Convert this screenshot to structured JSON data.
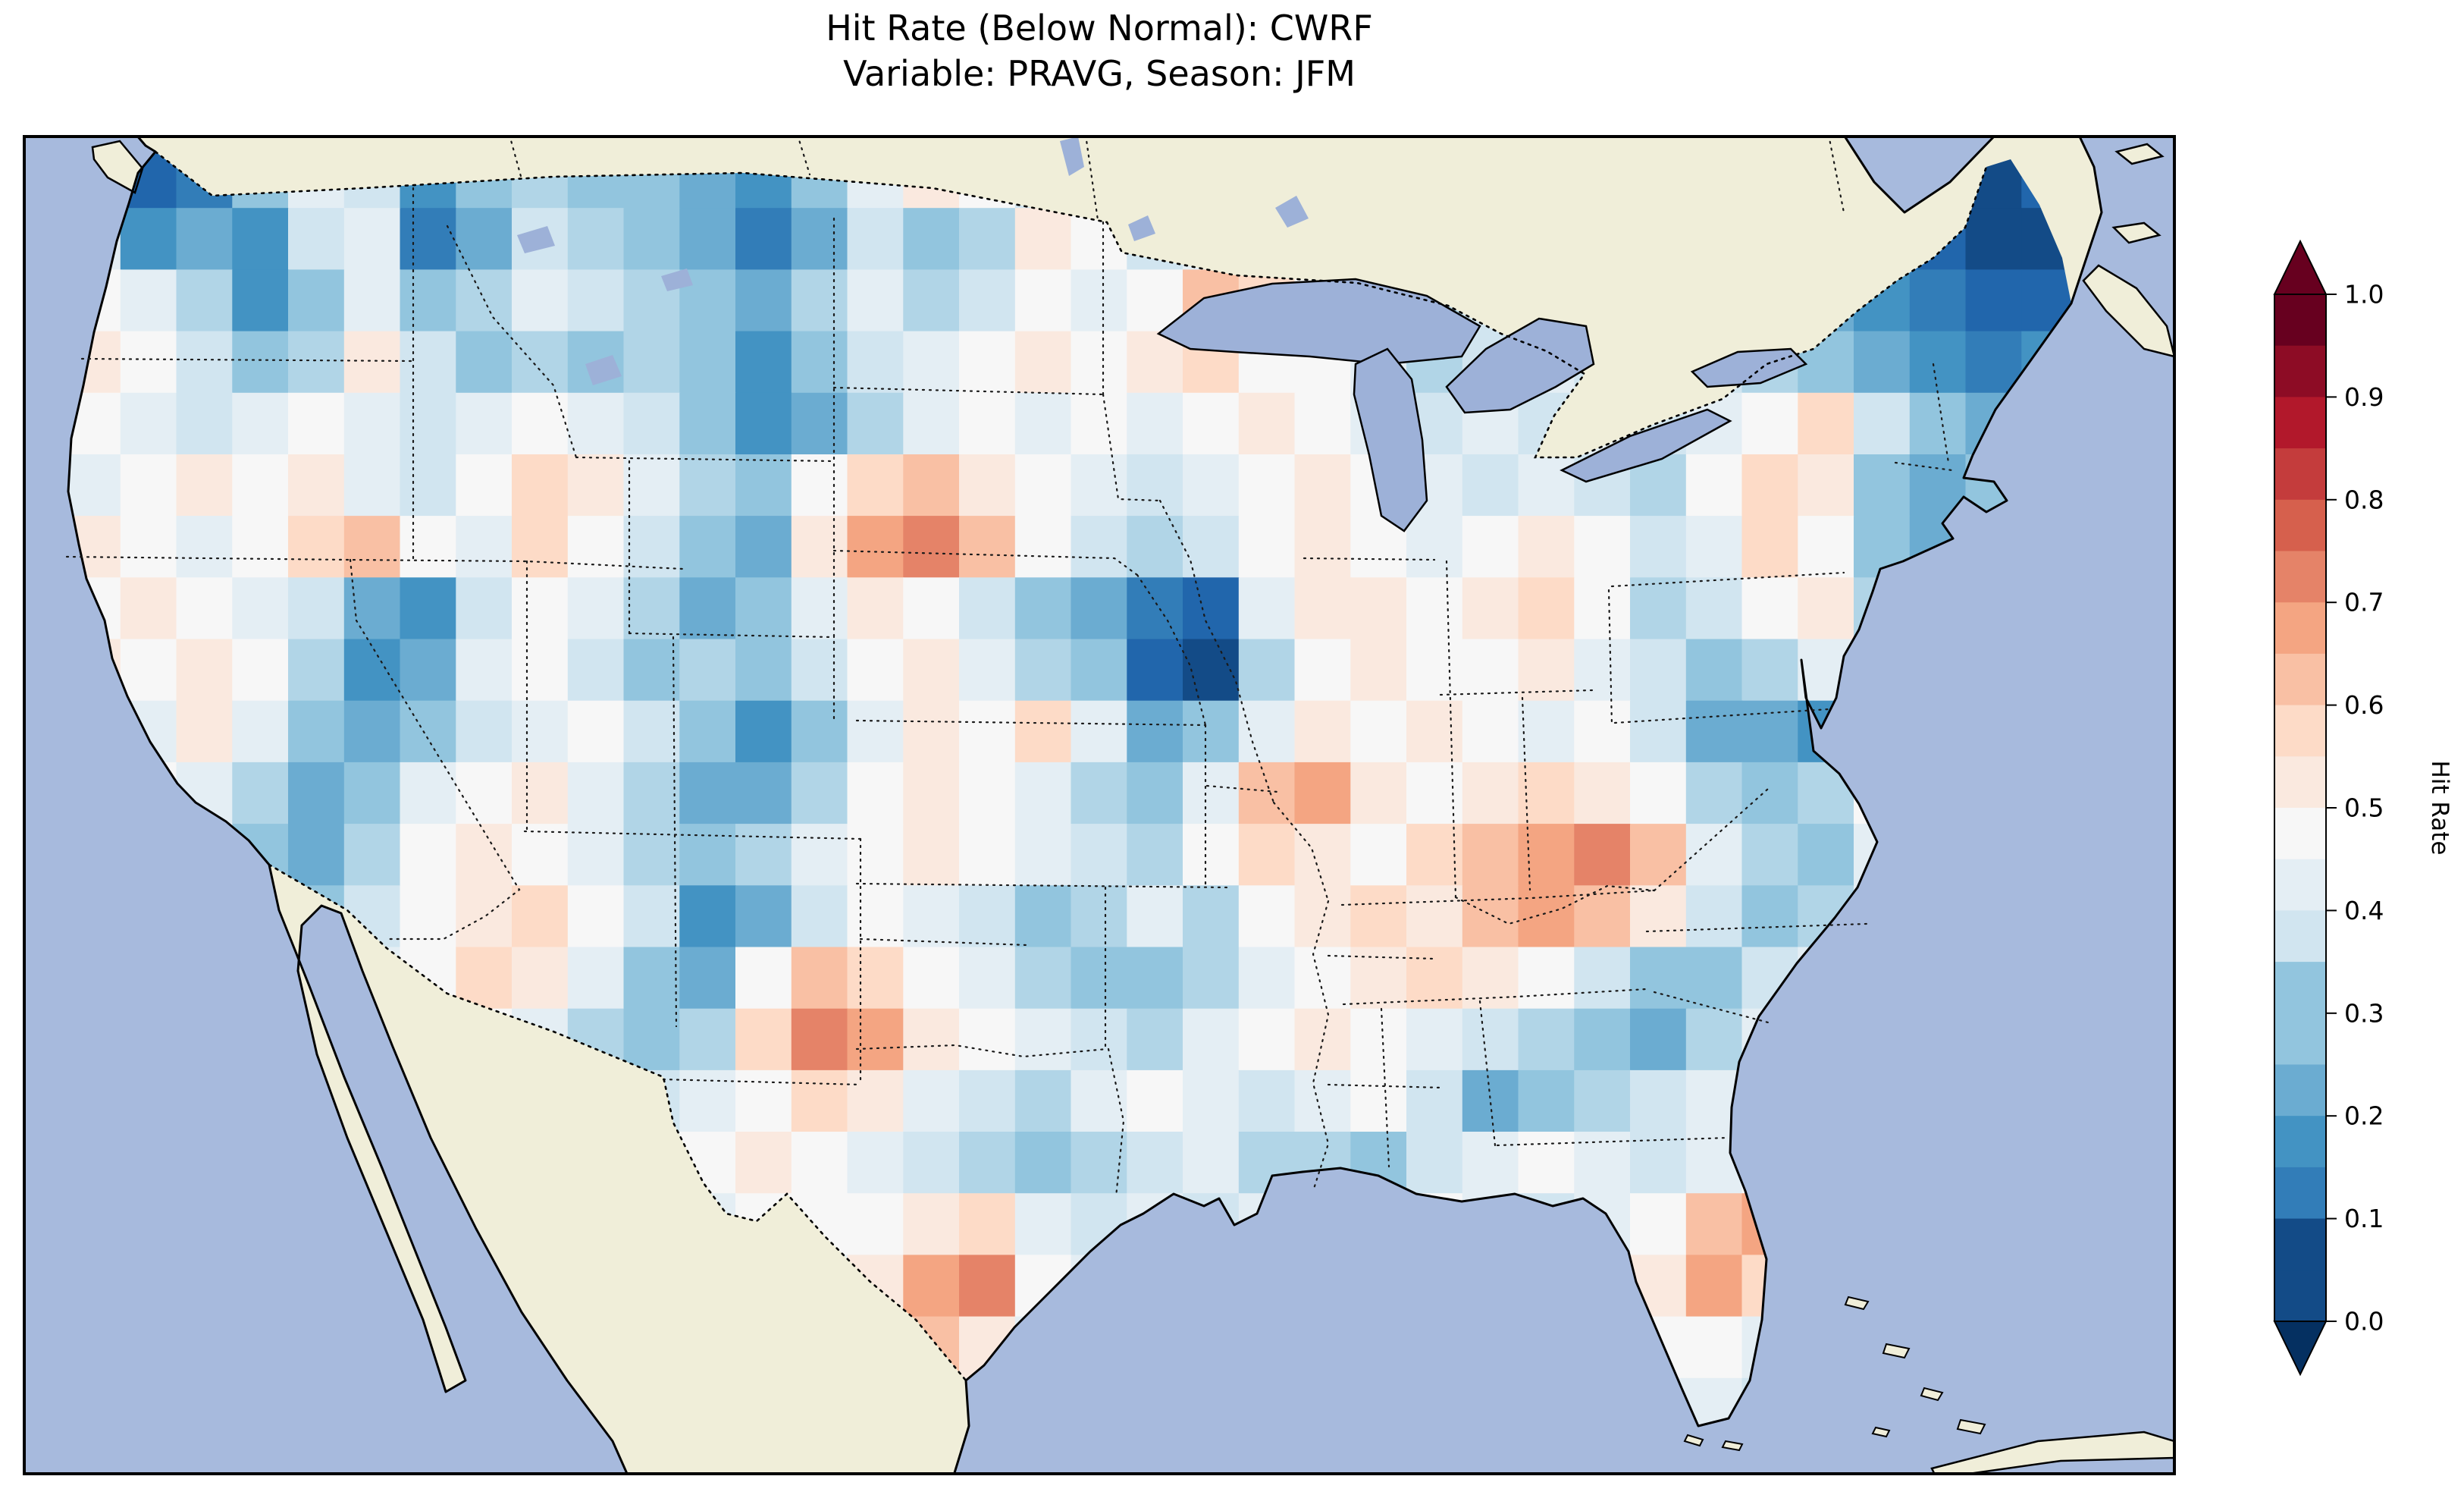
{
  "figure": {
    "title_line1": "Hit Rate (Below Normal): CWRF",
    "title_line2": "Variable: PRAVG, Season: JFM"
  },
  "colorbar": {
    "label": "Hit Rate",
    "ticks": [
      "1.0",
      "0.9",
      "0.8",
      "0.7",
      "0.6",
      "0.5",
      "0.4",
      "0.3",
      "0.2",
      "0.1",
      "0.0"
    ],
    "min": 0.0,
    "max": 1.0,
    "colormap": "RdBu_r",
    "stops": [
      [
        0.0,
        "#053061"
      ],
      [
        0.1,
        "#2166ac"
      ],
      [
        0.2,
        "#4393c3"
      ],
      [
        0.3,
        "#92c5de"
      ],
      [
        0.4,
        "#d1e5f0"
      ],
      [
        0.5,
        "#f7f7f7"
      ],
      [
        0.6,
        "#fddbc7"
      ],
      [
        0.7,
        "#f4a582"
      ],
      [
        0.8,
        "#d6604d"
      ],
      [
        0.9,
        "#b2182b"
      ],
      [
        1.0,
        "#67001f"
      ]
    ]
  },
  "map": {
    "ocean_color": "#a7badd",
    "land_color": "#f0eed9",
    "lake_color": "#9db1d8",
    "coast_color": "#000000",
    "border_color": "#1a1a1a"
  },
  "chart_data": {
    "type": "heatmap",
    "title": "Hit Rate (Below Normal): CWRF",
    "subtitle": "Variable: PRAVG, Season: JFM",
    "metric": "Hit Rate (Below Normal)",
    "model": "CWRF",
    "variable": "PRAVG",
    "season": "JFM",
    "region": "CONUS",
    "colorbar_label": "Hit Rate",
    "colormap": "RdBu_r",
    "value_range": [
      0.0,
      1.0
    ],
    "colorbar_ticks": [
      0.0,
      0.1,
      0.2,
      0.3,
      0.4,
      0.5,
      0.6,
      0.7,
      0.8,
      0.9,
      1.0
    ],
    "grid_rows": 21,
    "grid_cols": 36,
    "values": [
      [
        0.3,
        0.1,
        0.15,
        0.3,
        0.45,
        0.4,
        0.2,
        0.3,
        0.35,
        0.3,
        0.3,
        0.25,
        0.2,
        0.3,
        0.45,
        0.55,
        0.5,
        0.4,
        0.35,
        0.3,
        0.35,
        0.3,
        0.4,
        0.45,
        0.4,
        0.45,
        0.5,
        0.45,
        0.4,
        0.35,
        0.3,
        0.25,
        0.2,
        0.1,
        0.05,
        0.1
      ],
      [
        0.45,
        0.2,
        0.25,
        0.2,
        0.4,
        0.45,
        0.15,
        0.25,
        0.4,
        0.35,
        0.3,
        0.25,
        0.15,
        0.25,
        0.4,
        0.3,
        0.35,
        0.55,
        0.5,
        0.4,
        0.45,
        0.4,
        0.45,
        0.4,
        0.35,
        0.4,
        0.45,
        0.5,
        0.45,
        0.4,
        0.35,
        0.3,
        0.25,
        0.1,
        0.05,
        0.05
      ],
      [
        0.5,
        0.45,
        0.35,
        0.2,
        0.3,
        0.45,
        0.3,
        0.35,
        0.45,
        0.4,
        0.35,
        0.3,
        0.25,
        0.35,
        0.45,
        0.35,
        0.4,
        0.5,
        0.45,
        0.5,
        0.65,
        0.6,
        0.5,
        0.4,
        0.35,
        0.4,
        0.45,
        0.45,
        0.4,
        0.35,
        0.3,
        0.25,
        0.2,
        0.15,
        0.1,
        0.1
      ],
      [
        0.55,
        0.5,
        0.4,
        0.3,
        0.35,
        0.55,
        0.4,
        0.3,
        0.35,
        0.3,
        0.35,
        0.3,
        0.2,
        0.3,
        0.4,
        0.45,
        0.5,
        0.55,
        0.5,
        0.55,
        0.6,
        0.5,
        0.5,
        0.45,
        0.35,
        0.4,
        0.45,
        0.4,
        0.35,
        0.4,
        0.35,
        0.3,
        0.25,
        0.2,
        0.15,
        0.2
      ],
      [
        0.5,
        0.45,
        0.4,
        0.45,
        0.5,
        0.45,
        0.4,
        0.45,
        0.5,
        0.45,
        0.4,
        0.3,
        0.2,
        0.25,
        0.35,
        0.45,
        0.5,
        0.45,
        0.5,
        0.45,
        0.5,
        0.55,
        0.5,
        0.45,
        0.4,
        0.45,
        0.4,
        0.45,
        0.4,
        0.45,
        0.5,
        0.6,
        0.4,
        0.3,
        0.25,
        0.3
      ],
      [
        0.45,
        0.5,
        0.55,
        0.5,
        0.55,
        0.45,
        0.4,
        0.5,
        0.6,
        0.55,
        0.45,
        0.35,
        0.3,
        0.5,
        0.6,
        0.65,
        0.55,
        0.5,
        0.45,
        0.4,
        0.45,
        0.5,
        0.55,
        0.5,
        0.45,
        0.4,
        0.45,
        0.4,
        0.35,
        0.5,
        0.6,
        0.55,
        0.3,
        0.25,
        0.3,
        0.35
      ],
      [
        0.55,
        0.5,
        0.45,
        0.5,
        0.6,
        0.65,
        0.5,
        0.45,
        0.6,
        0.5,
        0.4,
        0.3,
        0.25,
        0.55,
        0.7,
        0.75,
        0.65,
        0.5,
        0.4,
        0.35,
        0.4,
        0.5,
        0.55,
        0.5,
        0.45,
        0.5,
        0.55,
        0.5,
        0.4,
        0.45,
        0.6,
        0.5,
        0.3,
        0.25,
        0.35,
        0.4
      ],
      [
        0.5,
        0.55,
        0.5,
        0.45,
        0.4,
        0.25,
        0.2,
        0.4,
        0.5,
        0.45,
        0.35,
        0.25,
        0.3,
        0.45,
        0.55,
        0.5,
        0.4,
        0.3,
        0.25,
        0.15,
        0.1,
        0.45,
        0.55,
        0.55,
        0.5,
        0.55,
        0.6,
        0.5,
        0.35,
        0.4,
        0.5,
        0.55,
        0.35,
        0.3,
        0.4,
        0.45
      ],
      [
        0.55,
        0.5,
        0.55,
        0.5,
        0.35,
        0.2,
        0.25,
        0.45,
        0.5,
        0.4,
        0.3,
        0.35,
        0.3,
        0.4,
        0.5,
        0.55,
        0.45,
        0.35,
        0.3,
        0.1,
        0.05,
        0.35,
        0.5,
        0.55,
        0.5,
        0.5,
        0.55,
        0.45,
        0.4,
        0.3,
        0.35,
        0.45,
        0.4,
        0.35,
        0.45,
        0.5
      ],
      [
        0.5,
        0.45,
        0.55,
        0.45,
        0.3,
        0.25,
        0.3,
        0.4,
        0.45,
        0.5,
        0.4,
        0.3,
        0.2,
        0.3,
        0.45,
        0.55,
        0.5,
        0.6,
        0.45,
        0.25,
        0.3,
        0.45,
        0.55,
        0.5,
        0.55,
        0.5,
        0.45,
        0.5,
        0.4,
        0.25,
        0.25,
        0.2,
        0.45,
        0.5,
        0.4,
        0.45
      ],
      [
        0.45,
        0.5,
        0.45,
        0.35,
        0.25,
        0.3,
        0.45,
        0.5,
        0.55,
        0.45,
        0.35,
        0.25,
        0.25,
        0.35,
        0.5,
        0.55,
        0.5,
        0.45,
        0.35,
        0.3,
        0.45,
        0.65,
        0.7,
        0.55,
        0.5,
        0.55,
        0.6,
        0.55,
        0.5,
        0.35,
        0.3,
        0.35,
        0.5,
        0.45,
        0.5,
        0.5
      ],
      [
        0.5,
        0.55,
        0.5,
        0.3,
        0.25,
        0.35,
        0.5,
        0.55,
        0.5,
        0.45,
        0.35,
        0.3,
        0.35,
        0.45,
        0.5,
        0.55,
        0.5,
        0.45,
        0.4,
        0.35,
        0.5,
        0.6,
        0.55,
        0.5,
        0.6,
        0.65,
        0.7,
        0.75,
        0.65,
        0.45,
        0.35,
        0.3,
        0.45,
        0.5,
        0.45,
        0.4
      ],
      [
        0.55,
        0.5,
        0.45,
        0.35,
        0.3,
        0.4,
        0.5,
        0.55,
        0.6,
        0.5,
        0.4,
        0.2,
        0.25,
        0.4,
        0.5,
        0.45,
        0.4,
        0.3,
        0.35,
        0.45,
        0.35,
        0.5,
        0.55,
        0.6,
        0.55,
        0.65,
        0.7,
        0.65,
        0.55,
        0.4,
        0.3,
        0.35,
        0.45,
        0.5,
        0.45,
        0.45
      ],
      [
        0.5,
        0.45,
        0.4,
        0.35,
        0.4,
        0.45,
        0.5,
        0.6,
        0.55,
        0.45,
        0.3,
        0.25,
        0.5,
        0.65,
        0.6,
        0.5,
        0.45,
        0.35,
        0.3,
        0.3,
        0.35,
        0.45,
        0.5,
        0.55,
        0.6,
        0.55,
        0.5,
        0.4,
        0.3,
        0.3,
        0.4,
        0.45,
        0.5,
        0.45,
        0.4,
        0.4
      ],
      [
        0.45,
        0.4,
        0.45,
        0.4,
        0.45,
        0.5,
        0.55,
        0.5,
        0.45,
        0.35,
        0.3,
        0.35,
        0.6,
        0.75,
        0.7,
        0.55,
        0.5,
        0.45,
        0.4,
        0.35,
        0.45,
        0.5,
        0.55,
        0.5,
        0.45,
        0.4,
        0.35,
        0.3,
        0.25,
        0.35,
        0.45,
        0.5,
        0.45,
        0.4,
        0.45,
        0.5
      ],
      [
        0.5,
        0.5,
        0.45,
        0.4,
        0.45,
        0.5,
        0.45,
        0.5,
        0.5,
        0.45,
        0.4,
        0.45,
        0.5,
        0.6,
        0.55,
        0.45,
        0.4,
        0.35,
        0.45,
        0.5,
        0.45,
        0.4,
        0.45,
        0.5,
        0.4,
        0.25,
        0.3,
        0.35,
        0.4,
        0.45,
        0.5,
        0.45,
        0.5,
        0.45,
        0.5,
        0.45
      ],
      [
        0.45,
        0.5,
        0.5,
        0.45,
        0.5,
        0.45,
        0.5,
        0.45,
        0.5,
        0.5,
        0.45,
        0.5,
        0.55,
        0.5,
        0.45,
        0.4,
        0.35,
        0.3,
        0.35,
        0.4,
        0.45,
        0.35,
        0.35,
        0.3,
        0.4,
        0.45,
        0.5,
        0.45,
        0.4,
        0.45,
        0.5,
        0.45,
        0.4,
        0.45,
        0.5,
        0.5
      ],
      [
        0.5,
        0.45,
        0.5,
        0.5,
        0.45,
        0.5,
        0.45,
        0.5,
        0.45,
        0.5,
        0.5,
        0.45,
        0.5,
        0.5,
        0.5,
        0.55,
        0.6,
        0.45,
        0.4,
        0.45,
        0.4,
        0.45,
        0.4,
        0.45,
        0.5,
        0.45,
        0.4,
        0.45,
        0.5,
        0.65,
        0.7,
        0.5,
        0.45,
        0.5,
        0.45,
        0.5
      ],
      [
        0.45,
        0.5,
        0.45,
        0.5,
        0.5,
        0.45,
        0.5,
        0.45,
        0.5,
        0.45,
        0.5,
        0.5,
        0.45,
        0.45,
        0.55,
        0.7,
        0.75,
        0.5,
        0.45,
        0.5,
        0.45,
        0.5,
        0.45,
        0.5,
        0.45,
        0.5,
        0.45,
        0.5,
        0.55,
        0.7,
        0.6,
        0.35,
        0.4,
        0.45,
        0.5,
        0.45
      ],
      [
        0.5,
        0.45,
        0.5,
        0.45,
        0.5,
        0.5,
        0.45,
        0.5,
        0.45,
        0.5,
        0.45,
        0.5,
        0.5,
        0.45,
        0.5,
        0.65,
        0.55,
        0.45,
        0.5,
        0.45,
        0.5,
        0.45,
        0.5,
        0.45,
        0.5,
        0.45,
        0.5,
        0.45,
        0.5,
        0.5,
        0.45,
        0.4,
        0.45,
        0.5,
        0.45,
        0.5
      ],
      [
        0.45,
        0.5,
        0.45,
        0.5,
        0.45,
        0.5,
        0.5,
        0.45,
        0.5,
        0.45,
        0.5,
        0.45,
        0.5,
        0.5,
        0.45,
        0.5,
        0.45,
        0.5,
        0.45,
        0.5,
        0.45,
        0.5,
        0.45,
        0.5,
        0.45,
        0.5,
        0.45,
        0.5,
        0.45,
        0.45,
        0.4,
        0.45,
        0.5,
        0.45,
        0.5,
        0.45
      ]
    ]
  }
}
